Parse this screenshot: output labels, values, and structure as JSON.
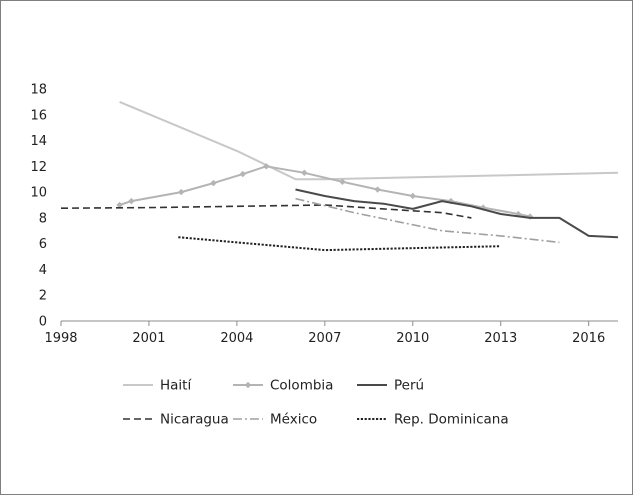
{
  "chart_data": {
    "type": "line",
    "title": "",
    "xlabel": "",
    "ylabel": "",
    "xlim": [
      1998,
      2017
    ],
    "ylim": [
      0,
      18
    ],
    "x_ticks": [
      "1998",
      "2001",
      "2004",
      "2007",
      "2010",
      "2013",
      "2016"
    ],
    "y_ticks": [
      "0",
      "2",
      "4",
      "6",
      "8",
      "10",
      "12",
      "14",
      "16",
      "18"
    ],
    "grid": false,
    "legend_position": "bottom",
    "series": [
      {
        "name": "Haití",
        "color": "#c8c8c8",
        "dash": "solid",
        "marker": "none",
        "points": [
          [
            2000,
            17.0
          ],
          [
            2004,
            13.2
          ],
          [
            2006,
            11.0
          ],
          [
            2007,
            11.0
          ],
          [
            2013,
            11.3
          ],
          [
            2017,
            11.5
          ]
        ]
      },
      {
        "name": "Colombia",
        "color": "#b4b4b4",
        "dash": "solid",
        "marker": "diamond",
        "points": [
          [
            2000,
            9.0
          ],
          [
            2000.4,
            9.3
          ],
          [
            2002.1,
            10.0
          ],
          [
            2003.2,
            10.7
          ],
          [
            2004.2,
            11.4
          ],
          [
            2005,
            12.0
          ],
          [
            2006.3,
            11.5
          ],
          [
            2007.6,
            10.8
          ],
          [
            2008.8,
            10.2
          ],
          [
            2010,
            9.7
          ],
          [
            2011.3,
            9.3
          ],
          [
            2012.4,
            8.8
          ],
          [
            2013.6,
            8.3
          ],
          [
            2014,
            8.1
          ]
        ]
      },
      {
        "name": "Perú",
        "color": "#4a4a4a",
        "dash": "solid",
        "marker": "none",
        "points": [
          [
            2006,
            10.2
          ],
          [
            2007,
            9.7
          ],
          [
            2008,
            9.3
          ],
          [
            2009,
            9.1
          ],
          [
            2010,
            8.7
          ],
          [
            2011,
            9.3
          ],
          [
            2012,
            8.9
          ],
          [
            2013,
            8.3
          ],
          [
            2014,
            8.0
          ],
          [
            2015,
            8.0
          ],
          [
            2016,
            6.6
          ],
          [
            2017,
            6.5
          ]
        ]
      },
      {
        "name": "Nicaragua",
        "color": "#333333",
        "dash": "dash",
        "marker": "none",
        "points": [
          [
            1998,
            8.75
          ],
          [
            2001,
            8.8
          ],
          [
            2004,
            8.9
          ],
          [
            2007,
            9.0
          ],
          [
            2009,
            8.7
          ],
          [
            2011,
            8.4
          ],
          [
            2012,
            8.0
          ]
        ]
      },
      {
        "name": "México",
        "color": "#a0a0a0",
        "dash": "dashdot",
        "marker": "none",
        "points": [
          [
            2006,
            9.5
          ],
          [
            2008,
            8.4
          ],
          [
            2011,
            7.0
          ],
          [
            2013,
            6.6
          ],
          [
            2015,
            6.1
          ]
        ]
      },
      {
        "name": "Rep. Dominicana",
        "color": "#222222",
        "dash": "dot",
        "marker": "none",
        "points": [
          [
            2002,
            6.5
          ],
          [
            2004,
            6.1
          ],
          [
            2007,
            5.5
          ],
          [
            2011,
            5.7
          ],
          [
            2013,
            5.8
          ]
        ]
      }
    ]
  }
}
